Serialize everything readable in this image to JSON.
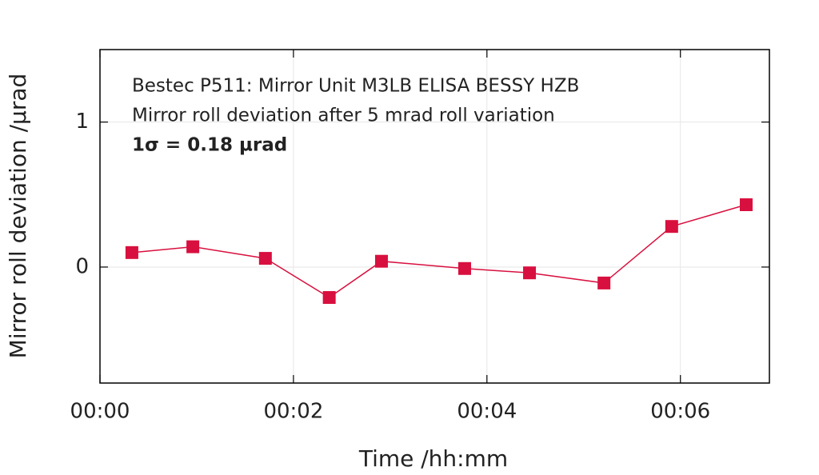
{
  "chart_data": {
    "type": "line",
    "annotations": [
      "Bestec P511: Mirror Unit M3LB ELISA BESSY HZB",
      "Mirror roll deviation after 5 mrad roll variation",
      "1σ = 0.18 µrad"
    ],
    "x_label": "Time /hh:mm",
    "y_label": "Mirror roll deviation /µrad",
    "x": [
      0.33,
      0.96,
      1.71,
      2.37,
      2.91,
      3.77,
      4.44,
      5.21,
      5.91,
      6.68
    ],
    "series": [
      {
        "color": "#d8103f",
        "values": [
          0.1,
          0.14,
          0.06,
          -0.21,
          0.04,
          -0.01,
          -0.04,
          -0.11,
          0.28,
          0.43
        ]
      }
    ],
    "xlim": [
      0,
      6.92
    ],
    "xticks": [
      {
        "value": 0,
        "label": "00:00"
      },
      {
        "value": 2,
        "label": "00:02"
      },
      {
        "value": 4,
        "label": "00:04"
      },
      {
        "value": 6,
        "label": "00:06"
      }
    ],
    "ylim": [
      -0.8,
      1.5
    ],
    "yticks": [
      0,
      1
    ],
    "grid": true
  }
}
